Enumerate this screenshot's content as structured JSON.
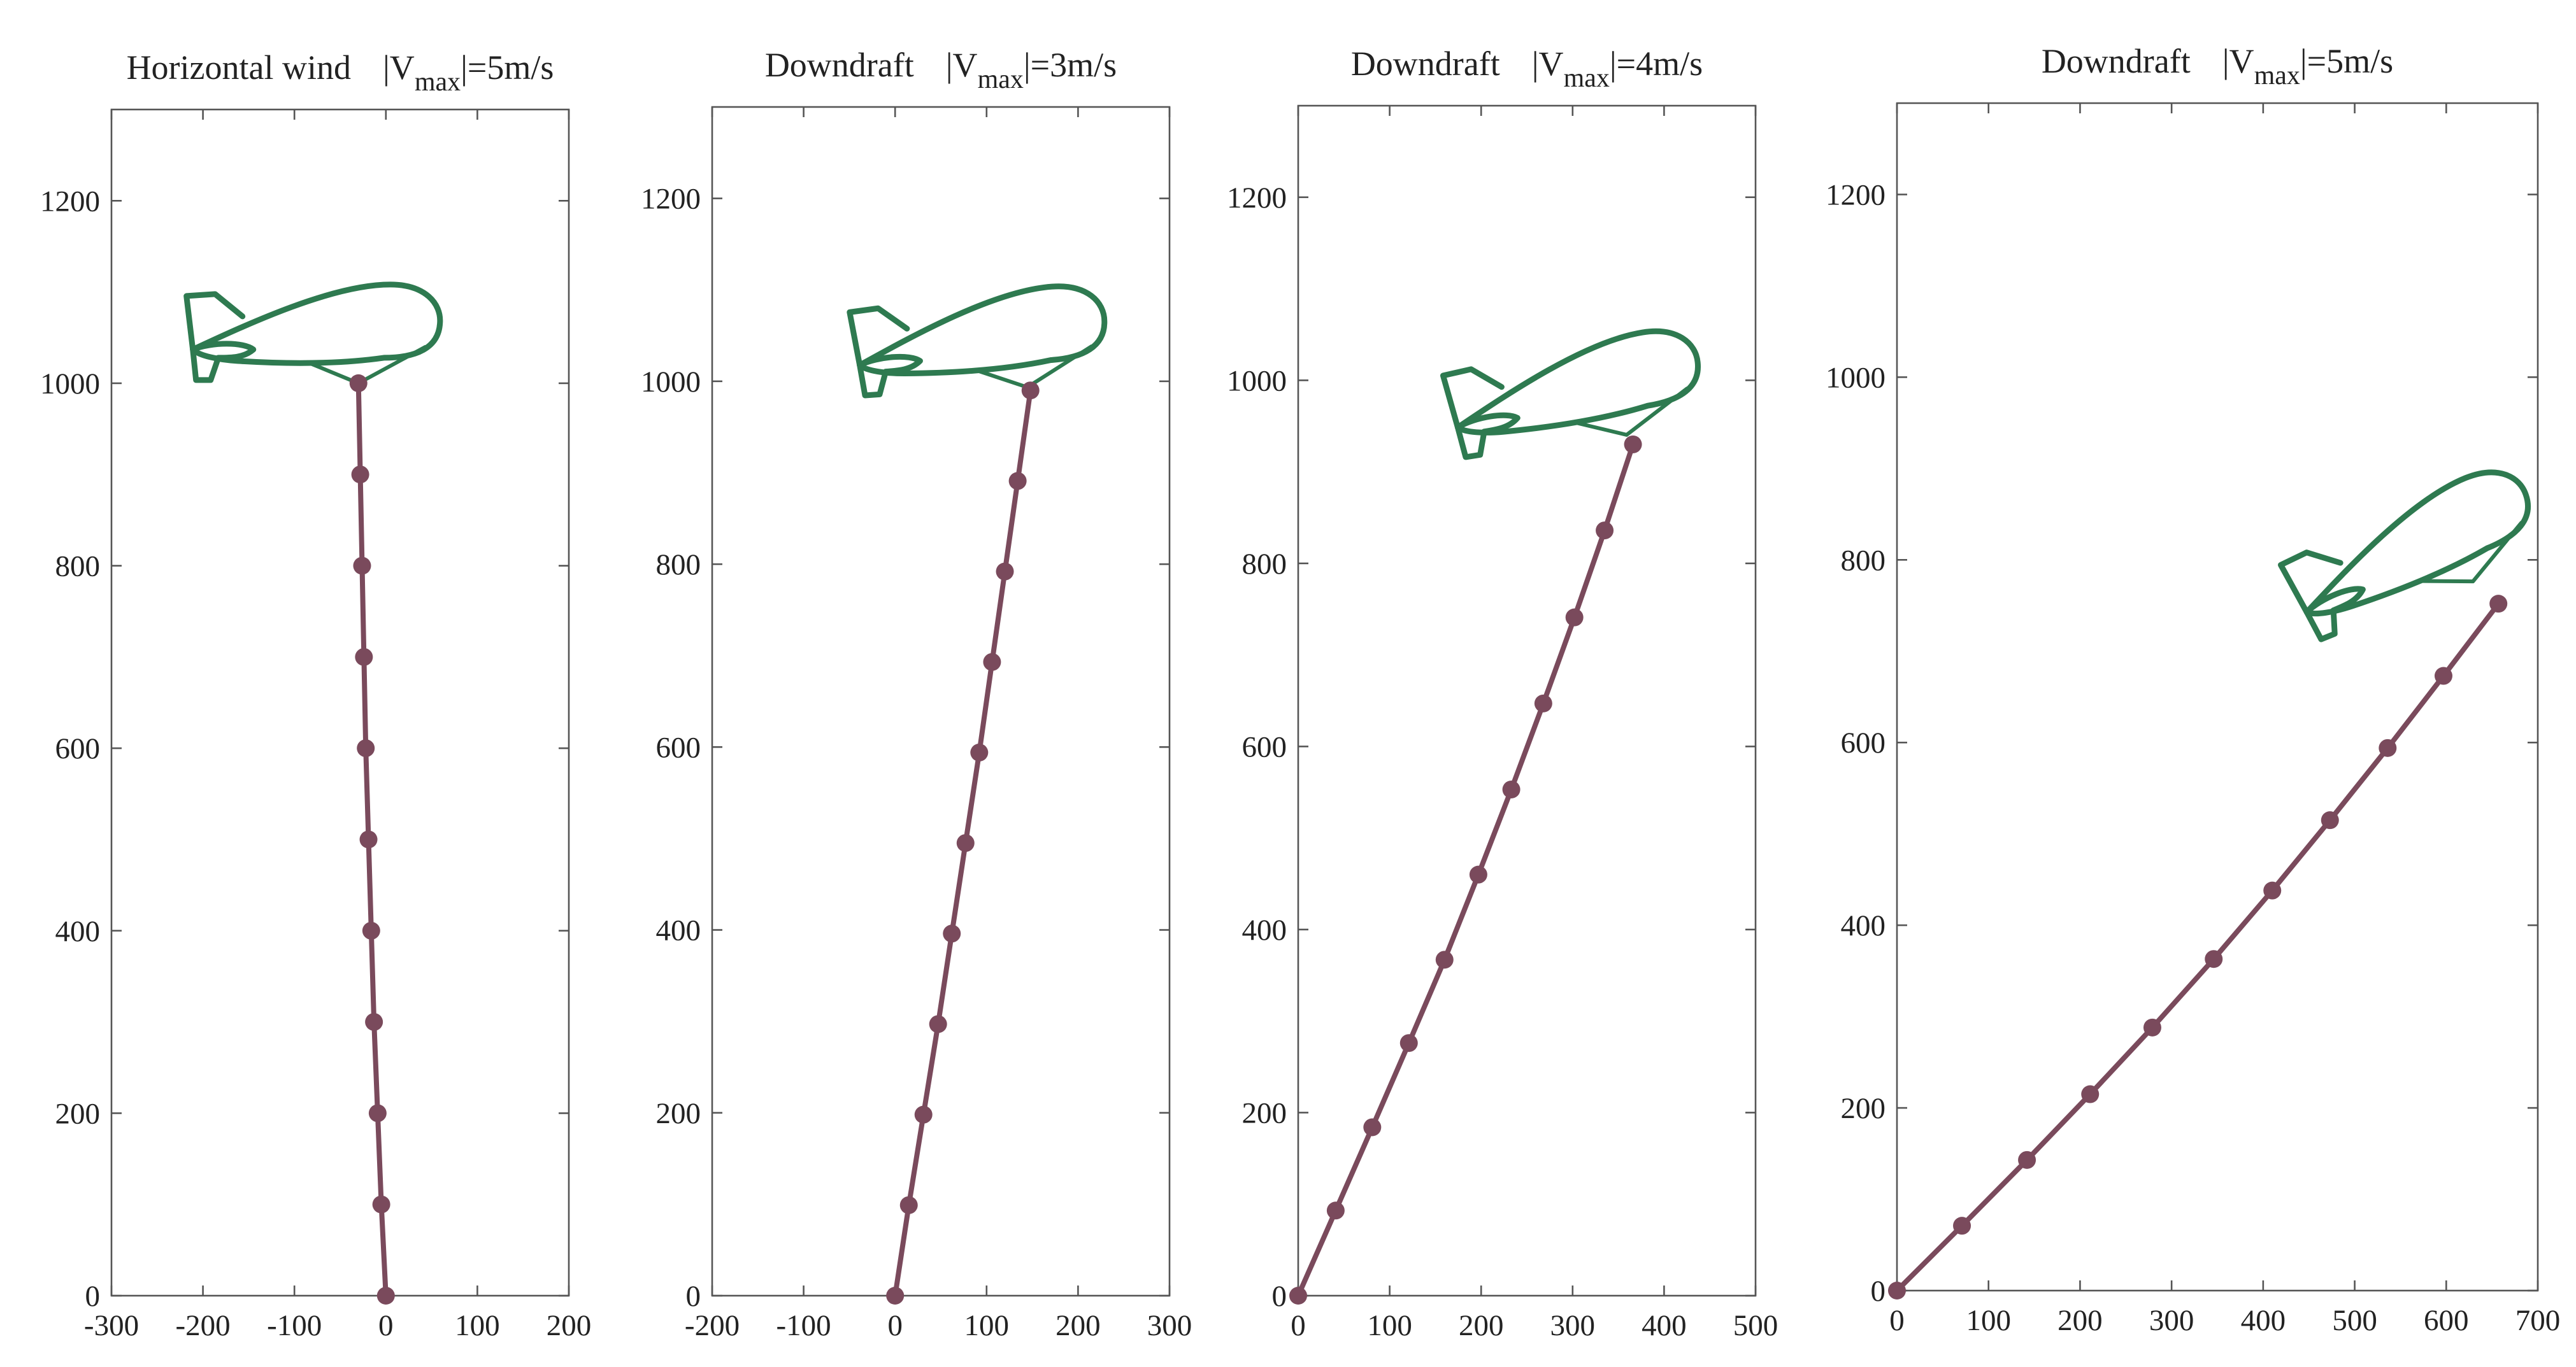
{
  "figure": {
    "accent_tether": "#7a4a5c",
    "accent_airship": "#2e7a50"
  },
  "chart_data": [
    {
      "type": "line",
      "title": {
        "prefix": "Horizontal wind",
        "v": "|V",
        "sub": "max",
        "suffix": "|=5m/s"
      },
      "xlabel": "",
      "ylabel": "",
      "xlim": [
        -300,
        200
      ],
      "ylim": [
        0,
        1300
      ],
      "xticks": [
        -300,
        -200,
        -100,
        0,
        100,
        200
      ],
      "yticks": [
        0,
        200,
        400,
        600,
        800,
        1000,
        1200
      ],
      "grid": false,
      "series": [
        {
          "x": [
            0,
            -5,
            -9,
            -13,
            -16,
            -19,
            -22,
            -24,
            -26,
            -28,
            -30
          ],
          "y": [
            0,
            100,
            200,
            300,
            400,
            500,
            600,
            700,
            800,
            900,
            1000
          ]
        }
      ],
      "airship": {
        "attach": [
          -30,
          1000
        ],
        "orientation": "level"
      }
    },
    {
      "type": "line",
      "title": {
        "prefix": "Downdraft",
        "v": "|V",
        "sub": "max",
        "suffix": "|=3m/s"
      },
      "xlabel": "",
      "ylabel": "",
      "xlim": [
        -200,
        300
      ],
      "ylim": [
        0,
        1300
      ],
      "xticks": [
        -200,
        -100,
        0,
        100,
        200,
        300
      ],
      "yticks": [
        0,
        200,
        400,
        600,
        800,
        1000,
        1200
      ],
      "grid": false,
      "series": [
        {
          "x": [
            0,
            15,
            31,
            47,
            62,
            77,
            92,
            106,
            120,
            134,
            148
          ],
          "y": [
            0,
            99,
            198,
            297,
            396,
            495,
            594,
            693,
            792,
            891,
            990
          ]
        }
      ],
      "airship": {
        "attach": [
          148,
          990
        ],
        "orientation": "slight-tilt"
      }
    },
    {
      "type": "line",
      "title": {
        "prefix": "Downdraft",
        "v": "|V",
        "sub": "max",
        "suffix": "|=4m/s"
      },
      "xlabel": "",
      "ylabel": "",
      "xlim": [
        0,
        500
      ],
      "ylim": [
        0,
        1300
      ],
      "xticks": [
        0,
        100,
        200,
        300,
        400,
        500
      ],
      "yticks": [
        0,
        200,
        400,
        600,
        800,
        1000,
        1200
      ],
      "grid": false,
      "series": [
        {
          "x": [
            0,
            41,
            81,
            121,
            160,
            197,
            233,
            268,
            302,
            335,
            366
          ],
          "y": [
            0,
            93,
            184,
            276,
            367,
            460,
            553,
            647,
            741,
            836,
            930
          ]
        }
      ],
      "airship": {
        "attach": [
          366,
          930
        ],
        "orientation": "tilt"
      }
    },
    {
      "type": "line",
      "title": {
        "prefix": "Downdraft",
        "v": "|V",
        "sub": "max",
        "suffix": "|=5m/s"
      },
      "xlabel": "",
      "ylabel": "",
      "xlim": [
        0,
        700
      ],
      "ylim": [
        0,
        1300
      ],
      "xticks": [
        0,
        100,
        200,
        300,
        400,
        500,
        600,
        700
      ],
      "yticks": [
        0,
        200,
        400,
        600,
        800,
        1000,
        1200
      ],
      "grid": false,
      "series": [
        {
          "x": [
            0,
            71,
            142,
            211,
            279,
            346,
            410,
            473,
            536,
            597,
            657
          ],
          "y": [
            0,
            71,
            143,
            215,
            288,
            363,
            438,
            515,
            594,
            673,
            752
          ]
        }
      ],
      "airship": {
        "attach": [
          657,
          752
        ],
        "orientation": "strong-tilt"
      }
    }
  ]
}
